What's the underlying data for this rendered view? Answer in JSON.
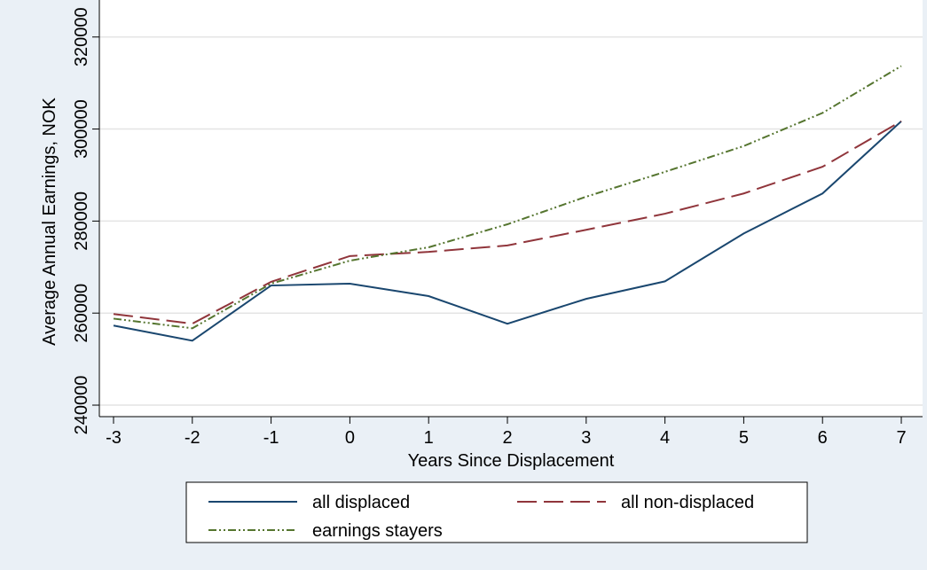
{
  "chart_data": {
    "type": "line",
    "x_label": "Years Since Displacement",
    "y_label": "Average Annual Earnings, NOK",
    "x": [
      -3,
      -2,
      -1,
      0,
      1,
      2,
      3,
      4,
      5,
      6,
      7
    ],
    "series": [
      {
        "name": "all displaced",
        "color": "#1a476f",
        "dash": "solid",
        "values": [
          257300,
          254000,
          266000,
          266400,
          263700,
          257700,
          263100,
          266900,
          277300,
          286000,
          301700
        ]
      },
      {
        "name": "all non-displaced",
        "color": "#90353b",
        "dash": "dash",
        "values": [
          259800,
          257700,
          266800,
          272400,
          273300,
          274700,
          278100,
          281600,
          286000,
          291800,
          301700
        ]
      },
      {
        "name": "earnings stayers",
        "color": "#55752f",
        "dash": "dashdot",
        "values": [
          258800,
          256700,
          266400,
          271400,
          274300,
          279300,
          285300,
          290700,
          296300,
          303500,
          313700
        ]
      }
    ],
    "xlim": [
      -3.18,
      7.27
    ],
    "xticks": [
      -3,
      -2,
      -1,
      0,
      1,
      2,
      3,
      4,
      5,
      6,
      7
    ],
    "ylim": [
      237500,
      326500
    ],
    "yticks": [
      240000,
      260000,
      280000,
      300000,
      320000
    ],
    "grid": true,
    "legend_position": "bottom"
  }
}
